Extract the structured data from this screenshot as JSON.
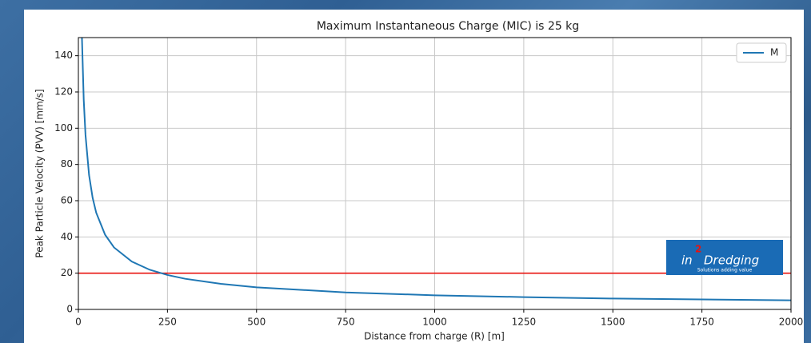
{
  "chart_data": {
    "type": "line",
    "title": "Maximum Instantaneous Charge (MIC) is 25 kg",
    "xlabel": "Distance from charge (R) [m]",
    "ylabel": "Peak Particle Velocity (PVV) [mm/s]",
    "x": [
      10,
      15,
      20,
      30,
      40,
      50,
      75,
      100,
      150,
      200,
      250,
      300,
      400,
      500,
      750,
      1000,
      1250,
      1500,
      1750,
      2000
    ],
    "series": [
      {
        "name": "M",
        "color": "#1f77b4",
        "values": [
          150,
          115.7,
          96.2,
          74.1,
          61.6,
          53.4,
          41.2,
          34.2,
          26.4,
          21.9,
          19,
          16.9,
          14.1,
          12.2,
          9.4,
          7.8,
          6.8,
          6.0,
          5.5,
          5.0
        ]
      }
    ],
    "hlines": [
      {
        "value": 20,
        "color": "#e8130f"
      }
    ],
    "xlim": [
      0,
      2000
    ],
    "ylim": [
      0,
      150
    ],
    "xticks": [
      0,
      250,
      500,
      750,
      1000,
      1250,
      1500,
      1750,
      2000
    ],
    "yticks": [
      0,
      20,
      40,
      60,
      80,
      100,
      120,
      140
    ],
    "grid": true,
    "legend": "upper right"
  },
  "logo": {
    "prefix": "in",
    "mark": "2",
    "suffix": "Dredging",
    "tagline": "Solutions adding value"
  }
}
